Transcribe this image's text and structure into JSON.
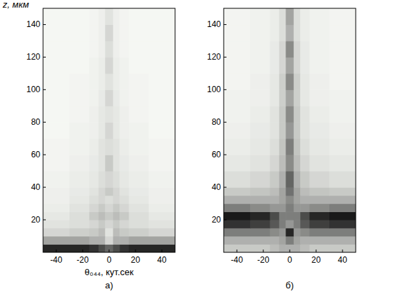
{
  "chart_data": [
    {
      "type": "heatmap",
      "title": "а)",
      "x_label": "θ₀₄₄, кут.сек",
      "y_label": "z, мкм",
      "xlim": [
        -50,
        50
      ],
      "ylim": [
        0,
        150
      ],
      "xticks": [
        -40,
        -20,
        0,
        20,
        40
      ],
      "yticks": [
        20,
        40,
        60,
        80,
        100,
        120,
        140
      ],
      "x_edges": [
        -50,
        -30,
        -15,
        -8,
        -3,
        3,
        8,
        15,
        30,
        50
      ],
      "y_edges": [
        0,
        5,
        10,
        15,
        20,
        25,
        30,
        35,
        40,
        50,
        60,
        70,
        80,
        90,
        100,
        110,
        120,
        130,
        140,
        150
      ],
      "cells": [
        [
          0.85,
          0.85,
          0.8,
          0.7,
          0.6,
          0.7,
          0.8,
          0.85,
          0.85
        ],
        [
          0.35,
          0.35,
          0.3,
          0.3,
          0.15,
          0.3,
          0.3,
          0.35,
          0.35
        ],
        [
          0.15,
          0.18,
          0.2,
          0.25,
          0.1,
          0.25,
          0.2,
          0.18,
          0.15
        ],
        [
          0.1,
          0.12,
          0.15,
          0.2,
          0.15,
          0.2,
          0.15,
          0.12,
          0.1
        ],
        [
          0.08,
          0.12,
          0.2,
          0.25,
          0.2,
          0.25,
          0.2,
          0.12,
          0.08
        ],
        [
          0.06,
          0.1,
          0.15,
          0.2,
          0.15,
          0.2,
          0.15,
          0.1,
          0.06
        ],
        [
          0.05,
          0.08,
          0.12,
          0.15,
          0.12,
          0.15,
          0.12,
          0.08,
          0.05
        ],
        [
          0.05,
          0.07,
          0.1,
          0.15,
          0.2,
          0.15,
          0.1,
          0.07,
          0.05
        ],
        [
          0.04,
          0.06,
          0.08,
          0.12,
          0.15,
          0.12,
          0.08,
          0.06,
          0.04
        ],
        [
          0.03,
          0.05,
          0.07,
          0.1,
          0.2,
          0.1,
          0.07,
          0.05,
          0.03
        ],
        [
          0.03,
          0.04,
          0.06,
          0.1,
          0.12,
          0.1,
          0.06,
          0.04,
          0.03
        ],
        [
          0.02,
          0.04,
          0.05,
          0.08,
          0.15,
          0.08,
          0.05,
          0.04,
          0.02
        ],
        [
          0.02,
          0.03,
          0.05,
          0.08,
          0.1,
          0.08,
          0.05,
          0.03,
          0.02
        ],
        [
          0.02,
          0.03,
          0.04,
          0.07,
          0.15,
          0.07,
          0.04,
          0.03,
          0.02
        ],
        [
          0.02,
          0.03,
          0.04,
          0.06,
          0.1,
          0.06,
          0.04,
          0.03,
          0.02
        ],
        [
          0.02,
          0.02,
          0.04,
          0.06,
          0.15,
          0.06,
          0.04,
          0.02,
          0.02
        ],
        [
          0.02,
          0.02,
          0.03,
          0.05,
          0.12,
          0.05,
          0.03,
          0.02,
          0.02
        ],
        [
          0.02,
          0.02,
          0.03,
          0.05,
          0.15,
          0.05,
          0.03,
          0.02,
          0.02
        ],
        [
          0.02,
          0.02,
          0.03,
          0.05,
          0.1,
          0.05,
          0.03,
          0.02,
          0.02
        ]
      ]
    },
    {
      "type": "heatmap",
      "title": "б)",
      "xlim": [
        -50,
        50
      ],
      "ylim": [
        0,
        150
      ],
      "xticks": [
        -40,
        -20,
        0,
        20,
        40
      ],
      "yticks": [
        20,
        40,
        60,
        80,
        100,
        120,
        140
      ],
      "x_edges": [
        -50,
        -30,
        -15,
        -8,
        -3,
        3,
        8,
        15,
        30,
        50
      ],
      "y_edges": [
        0,
        5,
        10,
        15,
        20,
        25,
        30,
        35,
        40,
        50,
        60,
        70,
        80,
        90,
        100,
        110,
        120,
        130,
        140,
        150
      ],
      "cells": [
        [
          0.2,
          0.2,
          0.25,
          0.3,
          0.3,
          0.3,
          0.25,
          0.2,
          0.2
        ],
        [
          0.3,
          0.3,
          0.3,
          0.35,
          0.5,
          0.35,
          0.3,
          0.3,
          0.3
        ],
        [
          0.5,
          0.5,
          0.45,
          0.4,
          0.85,
          0.4,
          0.45,
          0.5,
          0.5
        ],
        [
          0.8,
          0.75,
          0.65,
          0.5,
          0.4,
          0.5,
          0.65,
          0.75,
          0.8
        ],
        [
          0.9,
          0.85,
          0.7,
          0.5,
          0.5,
          0.5,
          0.7,
          0.85,
          0.9
        ],
        [
          0.5,
          0.45,
          0.4,
          0.4,
          0.5,
          0.4,
          0.4,
          0.45,
          0.5
        ],
        [
          0.3,
          0.3,
          0.3,
          0.35,
          0.45,
          0.35,
          0.3,
          0.3,
          0.3
        ],
        [
          0.2,
          0.22,
          0.25,
          0.35,
          0.55,
          0.35,
          0.25,
          0.22,
          0.2
        ],
        [
          0.12,
          0.15,
          0.2,
          0.3,
          0.6,
          0.3,
          0.2,
          0.15,
          0.12
        ],
        [
          0.08,
          0.1,
          0.15,
          0.25,
          0.45,
          0.25,
          0.15,
          0.1,
          0.08
        ],
        [
          0.06,
          0.08,
          0.12,
          0.22,
          0.5,
          0.22,
          0.12,
          0.08,
          0.06
        ],
        [
          0.05,
          0.07,
          0.1,
          0.2,
          0.4,
          0.2,
          0.1,
          0.07,
          0.05
        ],
        [
          0.04,
          0.06,
          0.1,
          0.2,
          0.45,
          0.2,
          0.1,
          0.06,
          0.04
        ],
        [
          0.04,
          0.05,
          0.08,
          0.18,
          0.35,
          0.18,
          0.08,
          0.05,
          0.04
        ],
        [
          0.03,
          0.05,
          0.08,
          0.18,
          0.45,
          0.18,
          0.08,
          0.05,
          0.03
        ],
        [
          0.03,
          0.04,
          0.07,
          0.15,
          0.35,
          0.15,
          0.07,
          0.04,
          0.03
        ],
        [
          0.03,
          0.04,
          0.07,
          0.15,
          0.45,
          0.15,
          0.07,
          0.04,
          0.03
        ],
        [
          0.03,
          0.04,
          0.06,
          0.12,
          0.3,
          0.12,
          0.06,
          0.04,
          0.03
        ],
        [
          0.03,
          0.04,
          0.06,
          0.12,
          0.35,
          0.12,
          0.06,
          0.04,
          0.03
        ]
      ]
    }
  ]
}
